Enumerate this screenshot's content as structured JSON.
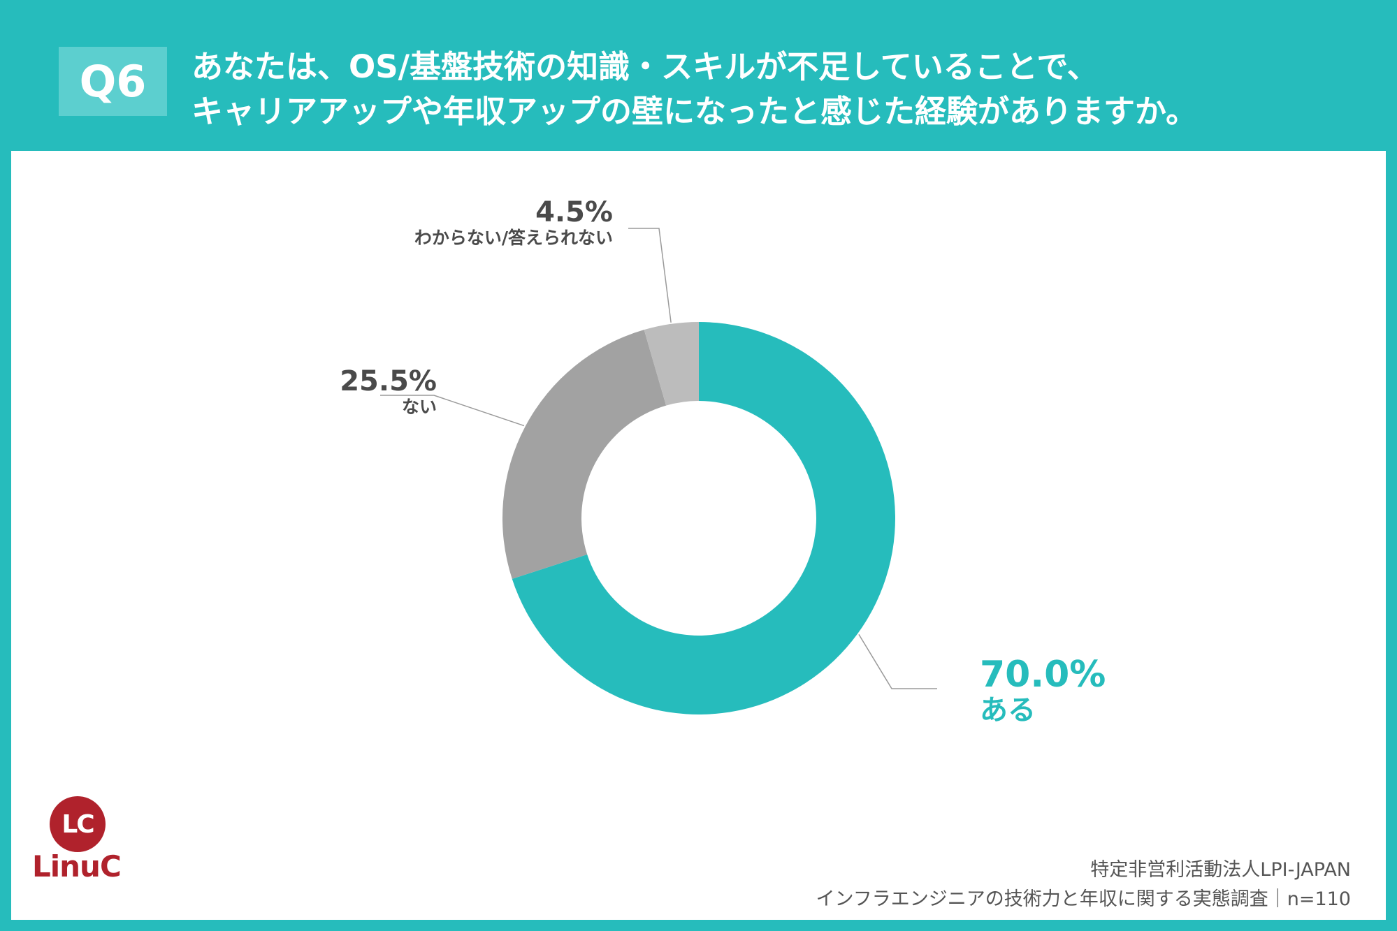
{
  "header": {
    "badge": "Q6",
    "question_line1": "あなたは、OS/基盤技術の知識・スキルが不足していることで、",
    "question_line2": "キャリアアップや年収アップの壁になったと感じた経験がありますか。"
  },
  "chart_data": {
    "type": "pie",
    "style": "donut",
    "slices": [
      {
        "label": "ある",
        "value": 70.0,
        "value_label": "70.0%",
        "color": "#26bcbc"
      },
      {
        "label": "ない",
        "value": 25.5,
        "value_label": "25.5%",
        "color": "#a2a2a2"
      },
      {
        "label": "わからない/答えられない",
        "value": 4.5,
        "value_label": "4.5%",
        "color": "#bcbcbc"
      }
    ],
    "start_angle": "12 o'clock",
    "direction": "clockwise"
  },
  "logo": {
    "mark": "LC",
    "name": "LinuC",
    "color": "#b0222c"
  },
  "source": {
    "line1": "特定非営利活動法人LPI-JAPAN",
    "line2": "インフラエンジニアの技術力と年収に関する実態調査｜n=110"
  }
}
